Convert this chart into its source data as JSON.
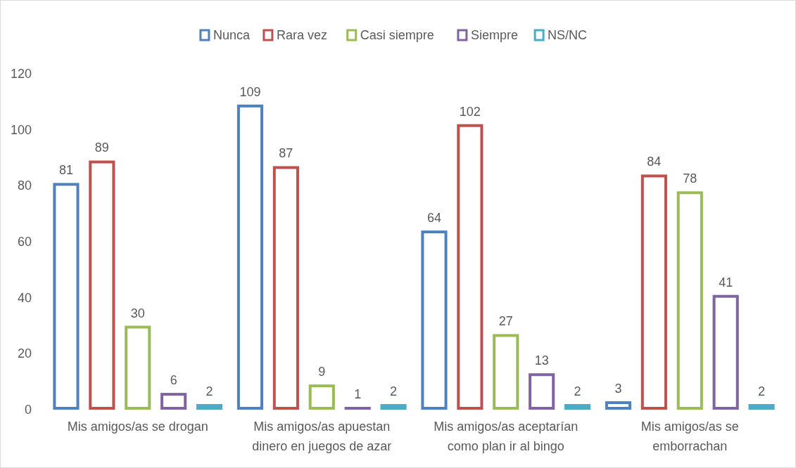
{
  "chart_data": {
    "type": "bar",
    "categories": [
      "Mis amigos/as se drogan",
      "Mis amigos/as apuestan dinero en juegos de azar",
      "Mis amigos/as aceptarían como plan ir al bingo",
      "Mis amigos/as se emborrachan"
    ],
    "series": [
      {
        "name": "Nunca",
        "color": "#4f81bd",
        "values": [
          81,
          109,
          64,
          3
        ]
      },
      {
        "name": "Rara vez",
        "color": "#c0504d",
        "values": [
          89,
          87,
          102,
          84
        ]
      },
      {
        "name": "Casi siempre",
        "color": "#9bbb59",
        "values": [
          30,
          9,
          27,
          78
        ]
      },
      {
        "name": "Siempre",
        "color": "#8064a2",
        "values": [
          6,
          1,
          13,
          41
        ]
      },
      {
        "name": "NS/NC",
        "color": "#4bacc6",
        "values": [
          2,
          2,
          2,
          2
        ]
      }
    ],
    "ylim": [
      0,
      120
    ],
    "yticks": [
      0,
      20,
      40,
      60,
      80,
      100,
      120
    ],
    "grid": false,
    "legend": "top",
    "data_labels": true
  }
}
